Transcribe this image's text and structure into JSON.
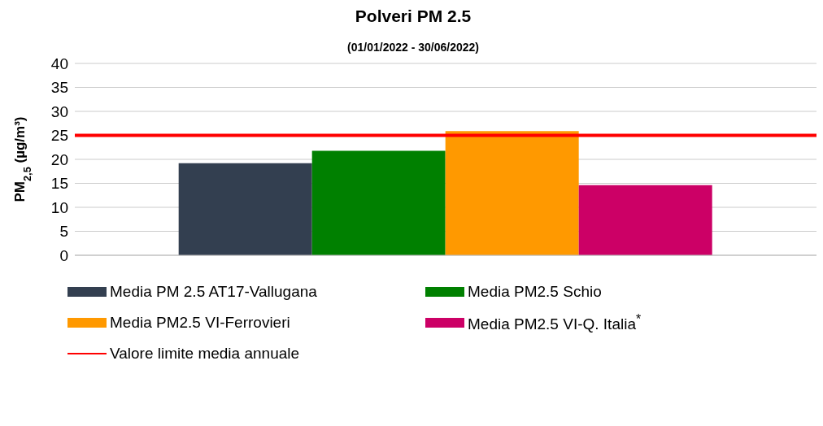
{
  "chart_data": {
    "type": "bar",
    "title": "Polveri PM 2.5",
    "subtitle": "(01/01/2022 - 30/06/2022)",
    "ylabel": "PM$_{2,5}$ (µg/m³)",
    "categories": [
      null
    ],
    "series": [
      {
        "name": "Media PM 2.5 AT17-Vallugana",
        "color": "#333f50",
        "values": [
          19.2
        ]
      },
      {
        "name": "Media PM2.5 Schio",
        "color": "#008000",
        "values": [
          21.8
        ]
      },
      {
        "name": "Media PM2.5 VI-Ferrovieri",
        "color": "#ff9900",
        "values": [
          25.9
        ]
      },
      {
        "name": "Media PM2.5 VI-Q. Italia$^{*}$",
        "color": "#cc0066",
        "values": [
          14.6
        ]
      }
    ],
    "ref_lines": [
      {
        "axis": "y",
        "value": 25,
        "label": "Valore limite media annuale",
        "color": "#ff0000"
      }
    ],
    "ylim": [
      0,
      40
    ],
    "yticks": [
      0,
      5,
      10,
      15,
      20,
      25,
      30,
      35,
      40
    ],
    "grid": "y",
    "legend": "bottom"
  }
}
